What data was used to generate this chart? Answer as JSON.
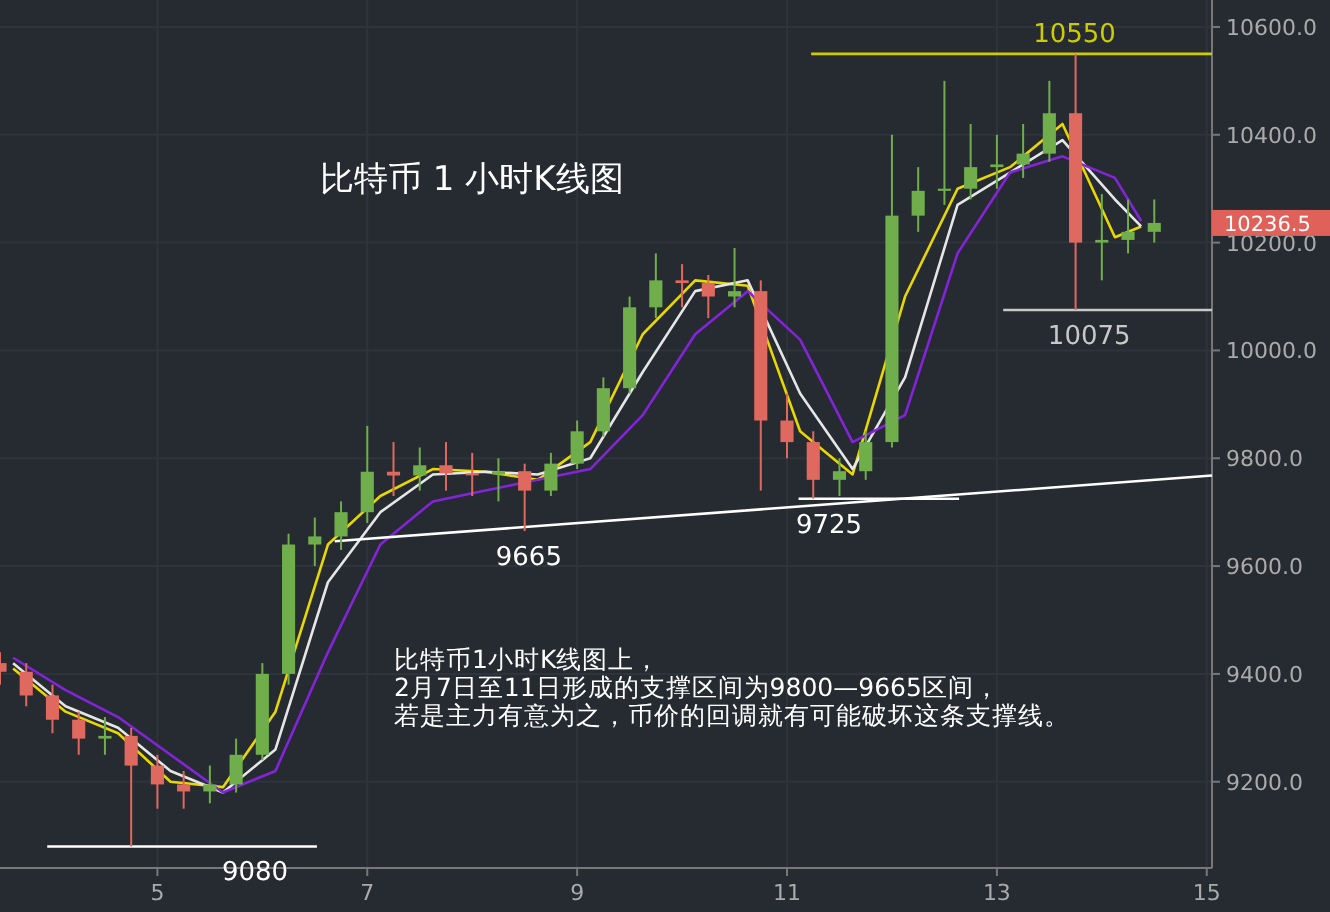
{
  "chart_data": {
    "type": "candlestick",
    "title": "比特币 1 小时K线图",
    "annotations": [
      "比特币1小时K线图上，",
      "2月7日至11日形成的支撑区间为9800—9665区间，",
      "若是主力有意为之，币价的回调就有可能破坏这条支撑线。",
      {
        "text": "10550",
        "x": 13.74,
        "y": 10550
      },
      {
        "text": "10075",
        "x": 13.88,
        "y": 10075
      },
      {
        "text": "9080",
        "x": 5.93,
        "y": 9080
      },
      {
        "text": "9665",
        "x": 8.54,
        "y": 9665
      },
      {
        "text": "9725",
        "x": 11.4,
        "y": 9725
      },
      "10236.5"
    ],
    "x": [
      3.5,
      3.75,
      4.0,
      4.25,
      4.5,
      4.75,
      5.0,
      5.25,
      5.5,
      5.75,
      6.0,
      6.25,
      6.5,
      6.75,
      7.0,
      7.25,
      7.5,
      7.75,
      8.0,
      8.25,
      8.5,
      8.75,
      9.0,
      9.25,
      9.5,
      9.75,
      10.0,
      10.25,
      10.5,
      10.75,
      11.0,
      11.25,
      11.5,
      11.75,
      12.0,
      12.25,
      12.5,
      12.75,
      13.0,
      13.25,
      13.5,
      13.75,
      14.0,
      14.25,
      14.5
    ],
    "ohlc": [
      [
        9420,
        9440,
        9380,
        9404
      ],
      [
        9404,
        9420,
        9340,
        9360
      ],
      [
        9360,
        9380,
        9290,
        9315
      ],
      [
        9315,
        9330,
        9250,
        9280
      ],
      [
        9280,
        9320,
        9250,
        9285
      ],
      [
        9285,
        9300,
        9080,
        9230
      ],
      [
        9230,
        9250,
        9150,
        9195
      ],
      [
        9195,
        9220,
        9150,
        9182
      ],
      [
        9182,
        9230,
        9160,
        9195
      ],
      [
        9195,
        9280,
        9180,
        9250
      ],
      [
        9250,
        9420,
        9240,
        9400
      ],
      [
        9400,
        9660,
        9380,
        9640
      ],
      [
        9640,
        9690,
        9600,
        9655
      ],
      [
        9655,
        9720,
        9630,
        9700
      ],
      [
        9700,
        9860,
        9680,
        9775
      ],
      [
        9775,
        9830,
        9730,
        9768
      ],
      [
        9768,
        9820,
        9740,
        9787
      ],
      [
        9787,
        9830,
        9740,
        9772
      ],
      [
        9772,
        9810,
        9730,
        9770
      ],
      [
        9770,
        9800,
        9720,
        9776
      ],
      [
        9776,
        9790,
        9665,
        9740
      ],
      [
        9740,
        9810,
        9730,
        9790
      ],
      [
        9790,
        9870,
        9780,
        9850
      ],
      [
        9850,
        9950,
        9840,
        9930
      ],
      [
        9930,
        10100,
        9920,
        10080
      ],
      [
        10080,
        10180,
        10060,
        10130
      ],
      [
        10130,
        10160,
        10080,
        10125
      ],
      [
        10125,
        10140,
        10060,
        10100
      ],
      [
        10100,
        10190,
        10080,
        10110
      ],
      [
        10110,
        10130,
        9740,
        9870
      ],
      [
        9870,
        9920,
        9800,
        9830
      ],
      [
        9830,
        9850,
        9725,
        9760
      ],
      [
        9760,
        9800,
        9730,
        9776
      ],
      [
        9776,
        9850,
        9760,
        9830
      ],
      [
        9830,
        10400,
        9820,
        10250
      ],
      [
        10250,
        10340,
        10220,
        10296
      ],
      [
        10296,
        10500,
        10270,
        10300
      ],
      [
        10300,
        10420,
        10280,
        10340
      ],
      [
        10340,
        10400,
        10300,
        10345
      ],
      [
        10345,
        10420,
        10320,
        10365
      ],
      [
        10365,
        10500,
        10350,
        10440
      ],
      [
        10440,
        10550,
        10075,
        10200
      ],
      [
        10200,
        10290,
        10130,
        10205
      ],
      [
        10205,
        10280,
        10180,
        10220
      ],
      [
        10220,
        10280,
        10200,
        10236.5
      ]
    ],
    "colors": [
      "#e0695f",
      "#e0695f",
      "#e0695f",
      "#e0695f",
      "#6fae4b",
      "#e0695f",
      "#e0695f",
      "#e0695f",
      "#6fae4b",
      "#6fae4b",
      "#6fae4b",
      "#6fae4b",
      "#6fae4b",
      "#6fae4b",
      "#6fae4b",
      "#e0695f",
      "#6fae4b",
      "#e0695f",
      "#e0695f",
      "#6fae4b",
      "#e0695f",
      "#6fae4b",
      "#6fae4b",
      "#6fae4b",
      "#6fae4b",
      "#6fae4b",
      "#e0695f",
      "#e0695f",
      "#6fae4b",
      "#e0695f",
      "#e0695f",
      "#e0695f",
      "#6fae4b",
      "#6fae4b",
      "#6fae4b",
      "#6fae4b",
      "#6fae4b",
      "#6fae4b",
      "#6fae4b",
      "#6fae4b",
      "#6fae4b",
      "#e0695f",
      "#6fae4b",
      "#6fae4b",
      "#6fae4b"
    ],
    "series": [
      {
        "type": "line",
        "color": "#e8d800",
        "x": [
          3.625,
          4.125,
          4.625,
          5.125,
          5.625,
          6.125,
          6.625,
          7.125,
          7.625,
          8.125,
          8.625,
          9.125,
          9.625,
          10.125,
          10.625,
          11.125,
          11.625,
          12.125,
          12.625,
          13.125,
          13.625,
          14.125,
          14.375
        ],
        "values": [
          9410,
          9330,
          9290,
          9200,
          9190,
          9330,
          9640,
          9730,
          9780,
          9775,
          9760,
          9830,
          10030,
          10130,
          10120,
          9850,
          9770,
          10100,
          10300,
          10340,
          10420,
          10210,
          10230
        ]
      },
      {
        "type": "line",
        "color": "#e6e6e6",
        "x": [
          3.625,
          4.125,
          4.625,
          5.125,
          5.625,
          6.125,
          6.625,
          7.125,
          7.625,
          8.125,
          8.625,
          9.125,
          9.625,
          10.125,
          10.625,
          11.125,
          11.625,
          12.125,
          12.625,
          13.125,
          13.625,
          14.125,
          14.375
        ],
        "values": [
          9420,
          9340,
          9300,
          9220,
          9180,
          9260,
          9570,
          9700,
          9770,
          9775,
          9770,
          9800,
          9960,
          10110,
          10130,
          9920,
          9780,
          9950,
          10270,
          10330,
          10390,
          10280,
          10230
        ]
      },
      {
        "type": "line",
        "color": "#8424d8",
        "x": [
          3.625,
          4.125,
          4.625,
          5.125,
          5.625,
          6.125,
          6.625,
          7.125,
          7.625,
          8.125,
          8.625,
          9.125,
          9.625,
          10.125,
          10.625,
          11.125,
          11.625,
          12.125,
          12.625,
          13.125,
          13.625,
          14.125,
          14.375
        ],
        "values": [
          9430,
          9370,
          9320,
          9250,
          9180,
          9220,
          9440,
          9640,
          9720,
          9740,
          9760,
          9780,
          9880,
          10030,
          10110,
          10020,
          9830,
          9880,
          10180,
          10330,
          10360,
          10320,
          10240
        ]
      },
      {
        "type": "line",
        "color": "#cccc00",
        "x": [
          11.23,
          15.05
        ],
        "values": [
          10550,
          10550
        ]
      },
      {
        "type": "line",
        "color": "#c8c8c8",
        "x": [
          13.06,
          15.05
        ],
        "values": [
          10075,
          10075
        ]
      },
      {
        "type": "line",
        "color": "#ffffff",
        "x": [
          3.95,
          6.52
        ],
        "values": [
          9080,
          9080
        ]
      },
      {
        "type": "line",
        "color": "#ffffff",
        "x": [
          11.11,
          12.64
        ],
        "values": [
          9725,
          9725
        ]
      },
      {
        "type": "line",
        "color": "#ffffff",
        "x": [
          6.69,
          15.05
        ],
        "values": [
          9646,
          9768
        ]
      }
    ],
    "xlim": [
      3.5,
      15.05
    ],
    "ylim": [
      9040,
      10650
    ],
    "xticks": [
      5,
      7,
      9,
      11,
      13,
      15
    ],
    "yticks": [
      {
        "value": 9200,
        "label": "9200.0"
      },
      {
        "value": 9400,
        "label": "9400.0"
      },
      {
        "value": 9600,
        "label": "9600.0"
      },
      {
        "value": 9800,
        "label": "9800.0"
      },
      {
        "value": 10000,
        "label": "10000.0"
      },
      {
        "value": 10200,
        "label": "10200.0"
      },
      {
        "value": 10400,
        "label": "10400.0"
      },
      {
        "value": 10600,
        "label": "10600.0"
      }
    ],
    "grid": true
  }
}
